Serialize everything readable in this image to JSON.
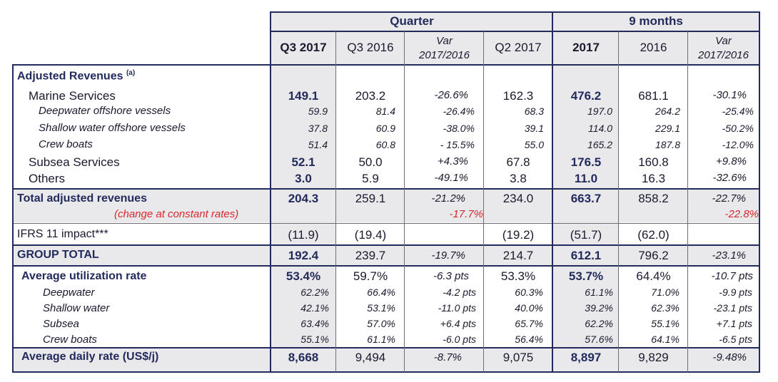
{
  "colors": {
    "navy": "#232a5c",
    "red": "#d8262d",
    "grey_band": "#e9e9eb"
  },
  "header": {
    "quarter": "Quarter",
    "nine_months": "9 months",
    "cols": [
      "Q3 2017",
      "Q3 2016",
      "Var",
      "2017/2016",
      "Q2 2017",
      "2017",
      "2016",
      "Var",
      "2017/2016"
    ]
  },
  "rows": {
    "adj_rev_label": "Adjusted Revenues",
    "adj_rev_note": "(a)",
    "marine": {
      "label": "Marine Services",
      "v": [
        "149.1",
        "203.2",
        "-26.6%",
        "162.3",
        "476.2",
        "681.1",
        "-30.1%"
      ]
    },
    "deepwater_vessels": {
      "label": "Deepwater offshore vessels",
      "v": [
        "59.9",
        "81.4",
        "-26.4%",
        "68.3",
        "197.0",
        "264.2",
        "-25.4%"
      ]
    },
    "shallow_vessels": {
      "label": "Shallow water offshore vessels",
      "v": [
        "37.8",
        "60.9",
        "-38.0%",
        "39.1",
        "114.0",
        "229.1",
        "-50.2%"
      ]
    },
    "crew_boats": {
      "label": "Crew boats",
      "v": [
        "51.4",
        "60.8",
        "- 15.5%",
        "55.0",
        "165.2",
        "187.8",
        "-12.0%"
      ]
    },
    "subsea": {
      "label": "Subsea Services",
      "v": [
        "52.1",
        "50.0",
        "+4.3%",
        "67.8",
        "176.5",
        "160.8",
        "+9.8%"
      ]
    },
    "others": {
      "label": "Others",
      "v": [
        "3.0",
        "5.9",
        "-49.1%",
        "3.8",
        "11.0",
        "16.3",
        "-32.6%"
      ]
    },
    "total_adj": {
      "label": "Total adjusted revenues",
      "v": [
        "204.3",
        "259.1",
        "-21.2%",
        "234.0",
        "663.7",
        "858.2",
        "-22.7%"
      ]
    },
    "constant": {
      "label": "(change at constant rates)",
      "v": [
        "-17.7%",
        "-22.8%"
      ]
    },
    "ifrs": {
      "label": "IFRS 11 impact***",
      "v": [
        "(11.9)",
        "(19.4)",
        "(19.2)",
        "(51.7)",
        "(62.0)"
      ]
    },
    "group_total": {
      "label": "GROUP TOTAL",
      "v": [
        "192.4",
        "239.7",
        "-19.7%",
        "214.7",
        "612.1",
        "796.2",
        "-23.1%"
      ]
    },
    "avg_util": {
      "label": "Average utilization rate",
      "v": [
        "53.4%",
        "59.7%",
        "-6.3 pts",
        "53.3%",
        "53.7%",
        "64.4%",
        "-10.7 pts"
      ]
    },
    "util_deepwater": {
      "label": "Deepwater",
      "v": [
        "62.2%",
        "66.4%",
        "-4.2 pts",
        "60.3%",
        "61.1%",
        "71.0%",
        "-9.9 pts"
      ]
    },
    "util_shallow": {
      "label": "Shallow water",
      "v": [
        "42.1%",
        "53.1%",
        "-11.0 pts",
        "40.0%",
        "39.2%",
        "62.3%",
        "-23.1 pts"
      ]
    },
    "util_subsea": {
      "label": "Subsea",
      "v": [
        "63.4%",
        "57.0%",
        "+6.4 pts",
        "65.7%",
        "62.2%",
        "55.1%",
        "+7.1 pts"
      ]
    },
    "util_crew": {
      "label": "Crew boats",
      "v": [
        "55.1%",
        "61.1%",
        "-6.0 pts",
        "56.4%",
        "57.6%",
        "64.1%",
        "-6.5 pts"
      ]
    },
    "daily_rate": {
      "label": "Average daily rate (US$/j)",
      "v": [
        "8,668",
        "9,494",
        "-8.7%",
        "9,075",
        "8,897",
        "9,829",
        "-9.48%"
      ]
    }
  }
}
